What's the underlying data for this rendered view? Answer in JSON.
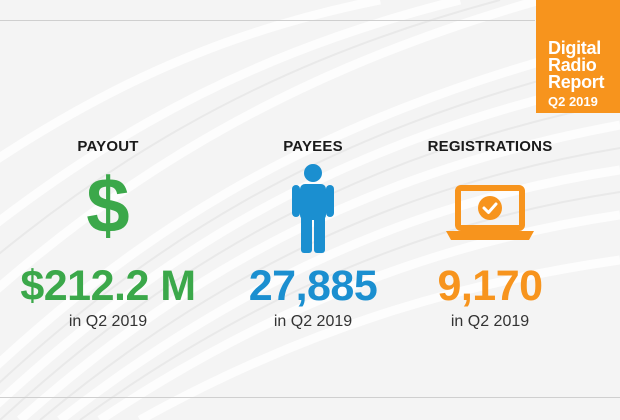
{
  "badge": {
    "line1": "Digital",
    "line2": "Radio",
    "line3": "Report",
    "period": "Q2 2019"
  },
  "stats": [
    {
      "heading": "PAYOUT",
      "value": "$212.2 M",
      "note": "in Q2 2019",
      "icon": "dollar-sign-icon",
      "color": "#3ba84a"
    },
    {
      "heading": "PAYEES",
      "value": "27,885",
      "note": "in Q2 2019",
      "icon": "person-icon",
      "color": "#1b8fd0"
    },
    {
      "heading": "REGISTRATIONS",
      "value": "9,170",
      "note": "in Q2 2019",
      "icon": "laptop-check-icon",
      "color": "#f7941d"
    }
  ]
}
